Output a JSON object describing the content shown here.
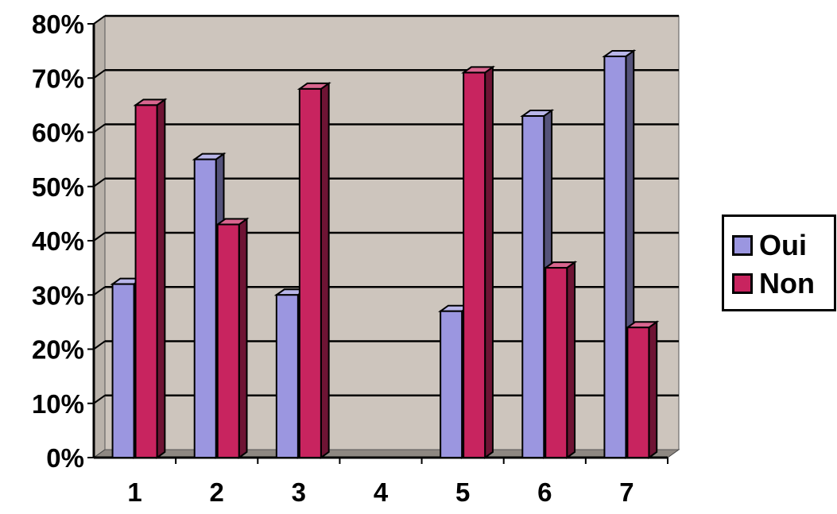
{
  "chart_data": {
    "type": "bar",
    "categories": [
      "1",
      "2",
      "3",
      "4",
      "5",
      "6",
      "7"
    ],
    "series": [
      {
        "name": "Oui",
        "color": "#9b96e0",
        "values": [
          32,
          55,
          30,
          0,
          27,
          63,
          74
        ]
      },
      {
        "name": "Non",
        "color": "#c8245f",
        "values": [
          65,
          43,
          68,
          0,
          71,
          35,
          24
        ]
      }
    ],
    "yticks": [
      "0%",
      "10%",
      "20%",
      "30%",
      "40%",
      "50%",
      "60%",
      "70%",
      "80%"
    ],
    "ylim": [
      0,
      80
    ],
    "grid": true,
    "legend_position": "right",
    "three_d": true,
    "plot_background": "#cdc5bd"
  }
}
